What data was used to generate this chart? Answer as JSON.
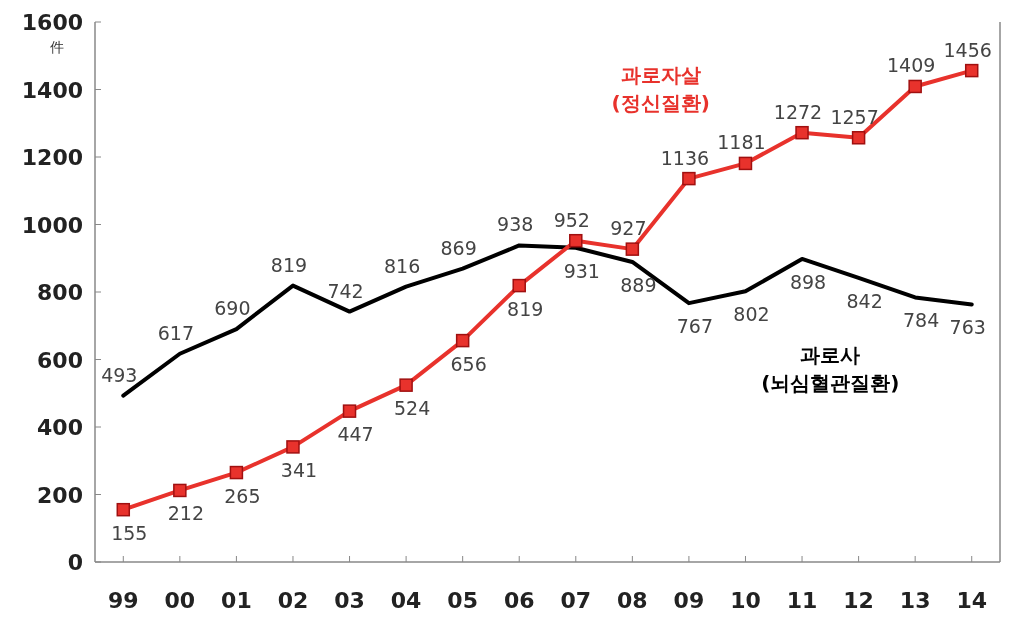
{
  "chart_data": {
    "type": "line",
    "ylabel": "件",
    "categories": [
      "99",
      "00",
      "01",
      "02",
      "03",
      "04",
      "05",
      "06",
      "07",
      "08",
      "09",
      "10",
      "11",
      "12",
      "13",
      "14"
    ],
    "ylim": [
      0,
      1600
    ],
    "yticks": [
      0,
      200,
      400,
      600,
      800,
      1000,
      1200,
      1400,
      1600
    ],
    "grid": false,
    "data_labels": true,
    "series": [
      {
        "name": "과로사\n(뇌심혈관질환)",
        "color": "#000000",
        "marker": "none",
        "values": [
          493,
          617,
          690,
          819,
          742,
          816,
          869,
          938,
          931,
          889,
          767,
          802,
          898,
          842,
          784,
          763
        ]
      },
      {
        "name": "과로자살\n(정신질환)",
        "color": "#e8322c",
        "marker": "square",
        "values": [
          155,
          212,
          265,
          341,
          447,
          524,
          656,
          819,
          952,
          927,
          1136,
          1181,
          1272,
          1257,
          1409,
          1456
        ]
      }
    ]
  }
}
